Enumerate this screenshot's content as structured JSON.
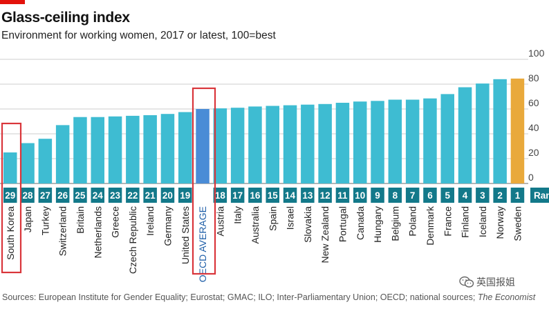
{
  "header": {
    "title": "Glass-ceiling index",
    "subtitle": "Environment for working women, 2017 or latest, 100=best"
  },
  "footer": {
    "source": "Sources: European Institute for Gender Equality; Eurostat; GMAC; ILO; Inter-Parliamentary Union; OECD; national sources;",
    "publisher": "The Economist"
  },
  "watermark": {
    "text": "英国报姐",
    "icon": "wechat-icon"
  },
  "colors": {
    "brand": "#E3120B",
    "bar": "#3EBCD2",
    "highlight_avg": "#4A8CD6",
    "highlight_top": "#E9A93B",
    "rank_tab": "#13798A",
    "grid": "#BBBBBB",
    "annotation_box": "#D9353A"
  },
  "chart_data": {
    "type": "bar",
    "title": "Glass-ceiling index",
    "subtitle": "Environment for working women, 2017 or latest, 100=best",
    "ylim": [
      0,
      100
    ],
    "yticks": [
      0,
      20,
      40,
      60,
      80,
      100
    ],
    "grid": true,
    "rank_label": "Rank",
    "categories": [
      "South Korea",
      "Japan",
      "Turkey",
      "Switzerland",
      "Britain",
      "Netherlands",
      "Greece",
      "Czech Republic",
      "Ireland",
      "Germany",
      "United States",
      "OECD AVERAGE",
      "Austria",
      "Italy",
      "Australia",
      "Spain",
      "Israel",
      "Slovakia",
      "New Zealand",
      "Portugal",
      "Canada",
      "Hungary",
      "Belgium",
      "Poland",
      "Denmark",
      "France",
      "Finland",
      "Iceland",
      "Norway",
      "Sweden"
    ],
    "values": [
      25,
      32.5,
      36,
      47,
      53.5,
      53.5,
      54,
      54.5,
      55,
      56,
      57.5,
      60,
      60.5,
      61,
      62,
      62.5,
      63,
      63.5,
      64,
      65,
      66,
      66.5,
      67.5,
      67.5,
      68.5,
      72,
      77.5,
      80.5,
      84,
      84.5
    ],
    "ranks": [
      "29",
      "28",
      "27",
      "26",
      "25",
      "24",
      "23",
      "22",
      "21",
      "20",
      "19",
      "",
      "18",
      "17",
      "16",
      "15",
      "14",
      "13",
      "12",
      "11",
      "10",
      "9",
      "8",
      "7",
      "6",
      "5",
      "4",
      "3",
      "2",
      "1"
    ],
    "highlight": {
      "OECD AVERAGE": "avg",
      "Sweden": "top"
    },
    "annotation_boxes": [
      "South Korea",
      "OECD AVERAGE"
    ]
  }
}
